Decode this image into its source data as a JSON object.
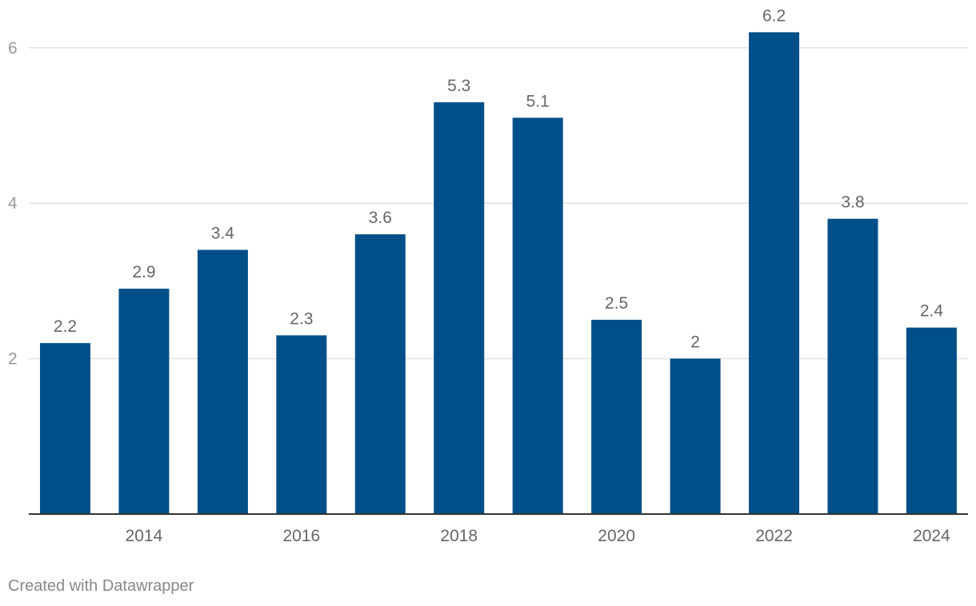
{
  "chart_data": {
    "type": "bar",
    "categories": [
      "2013",
      "2014",
      "2015",
      "2016",
      "2017",
      "2018",
      "2019",
      "2020",
      "2021",
      "2022",
      "2023",
      "2024"
    ],
    "values": [
      2.2,
      2.9,
      3.4,
      2.3,
      3.6,
      5.3,
      5.1,
      2.5,
      2,
      6.2,
      3.8,
      2.4
    ],
    "value_labels": [
      "2.2",
      "2.9",
      "3.4",
      "2.3",
      "3.6",
      "5.3",
      "5.1",
      "2.5",
      "2",
      "6.2",
      "3.8",
      "2.4"
    ],
    "x_tick_labels": [
      "2014",
      "2016",
      "2018",
      "2020",
      "2022",
      "2024"
    ],
    "y_ticks": [
      2,
      4,
      6
    ],
    "ylim": [
      0,
      6.5
    ],
    "grid": true,
    "title": "",
    "xlabel": "",
    "ylabel": "",
    "bar_color": "#004f88",
    "gridline_color": "#e0e0e0",
    "baseline_color": "#333333"
  },
  "footer": {
    "credit": "Created with Datawrapper"
  }
}
